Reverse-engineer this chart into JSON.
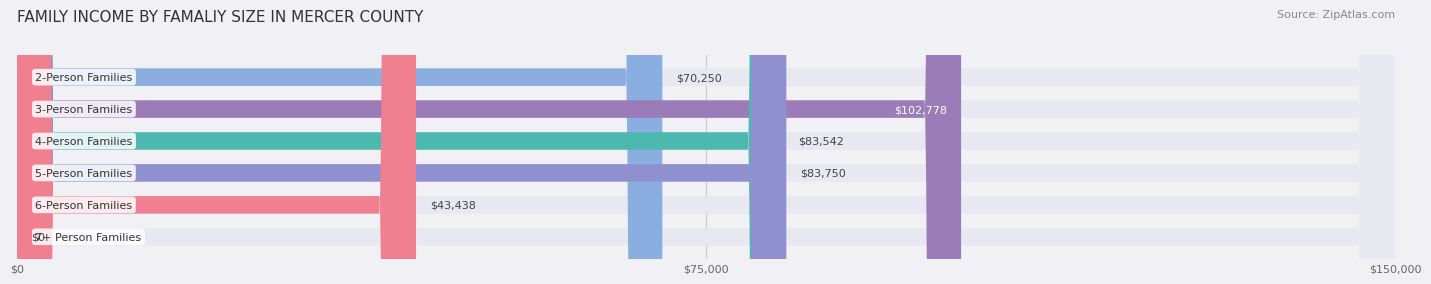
{
  "title": "FAMILY INCOME BY FAMALIY SIZE IN MERCER COUNTY",
  "source": "Source: ZipAtlas.com",
  "categories": [
    "2-Person Families",
    "3-Person Families",
    "4-Person Families",
    "5-Person Families",
    "6-Person Families",
    "7+ Person Families"
  ],
  "values": [
    70250,
    102778,
    83542,
    83750,
    43438,
    0
  ],
  "bar_colors": [
    "#8aaee0",
    "#9b7bb8",
    "#4db8b0",
    "#9090d0",
    "#f08090",
    "#f5d8b0"
  ],
  "label_colors": [
    "#555555",
    "#ffffff",
    "#555555",
    "#555555",
    "#555555",
    "#555555"
  ],
  "value_labels": [
    "$70,250",
    "$102,778",
    "$83,542",
    "$83,750",
    "$43,438",
    "$0"
  ],
  "xlim": [
    0,
    150000
  ],
  "xticks": [
    0,
    75000,
    150000
  ],
  "xticklabels": [
    "$0",
    "$75,000",
    "$150,000"
  ],
  "bar_height": 0.55,
  "background_color": "#f0f0f5",
  "bar_bg_color": "#e8e8f0",
  "title_fontsize": 11,
  "source_fontsize": 8,
  "label_fontsize": 8,
  "value_fontsize": 8
}
